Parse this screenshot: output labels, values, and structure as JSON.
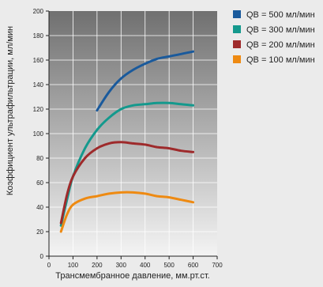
{
  "chart_data": {
    "type": "line",
    "title": "",
    "xlabel": "Трансмембранное давление, мм.рт.ст.",
    "ylabel": "Коэффициент ультрафильтрации, мл/мин",
    "xlim": [
      0,
      700
    ],
    "ylim": [
      0,
      200
    ],
    "x_ticks": [
      0,
      100,
      200,
      300,
      400,
      500,
      600,
      700
    ],
    "y_ticks": [
      0,
      20,
      40,
      60,
      80,
      100,
      120,
      140,
      160,
      180,
      200
    ],
    "grid": true,
    "background": "gradient-gray",
    "legend_position": "right",
    "series": [
      {
        "name": "QB = 500 мл/мин",
        "color": "#1a5a9c",
        "x": [
          200,
          250,
          300,
          350,
          400,
          450,
          500,
          550,
          600
        ],
        "y": [
          119,
          134,
          145,
          152,
          157,
          161,
          163,
          165,
          167
        ]
      },
      {
        "name": "QB = 300 мл/мин",
        "color": "#14998d",
        "x": [
          50,
          75,
          100,
          150,
          200,
          250,
          300,
          350,
          400,
          450,
          500,
          550,
          600
        ],
        "y": [
          25,
          46,
          65,
          88,
          103,
          113,
          120,
          123,
          124,
          125,
          125,
          124,
          123
        ]
      },
      {
        "name": "QB = 200 мл/мин",
        "color": "#9e2a2b",
        "x": [
          50,
          75,
          100,
          150,
          200,
          250,
          300,
          350,
          400,
          450,
          500,
          550,
          600
        ],
        "y": [
          27,
          50,
          65,
          80,
          88,
          92,
          93,
          92,
          91,
          89,
          88,
          86,
          85
        ]
      },
      {
        "name": "QB = 100 мл/мин",
        "color": "#ee8a12",
        "x": [
          50,
          75,
          100,
          150,
          200,
          250,
          300,
          350,
          400,
          450,
          500,
          550,
          600
        ],
        "y": [
          20,
          34,
          42,
          47,
          49,
          51,
          52,
          52,
          51,
          49,
          48,
          46,
          44
        ]
      }
    ]
  }
}
